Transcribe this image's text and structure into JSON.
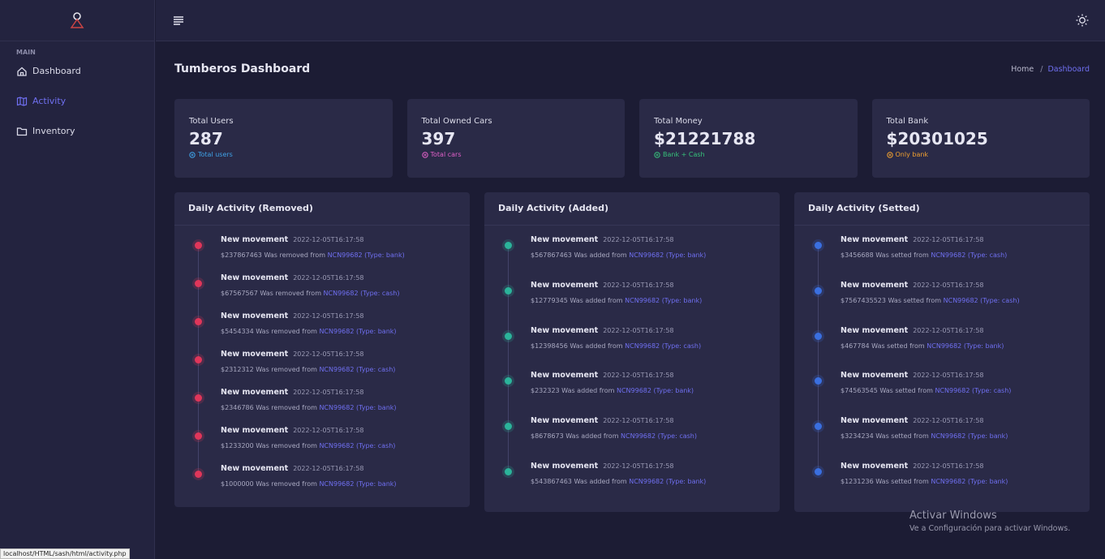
{
  "sidebar": {
    "section": "MAIN",
    "items": [
      "Dashboard",
      "Activity",
      "Inventory"
    ],
    "active": 1
  },
  "page": {
    "title": "Tumberos Dashboard",
    "breadcrumb": [
      "Home",
      "Dashboard"
    ],
    "separator": "/"
  },
  "stats": [
    {
      "label": "Total Users",
      "value": "287",
      "note": "Total users",
      "color": "#3fa3e8"
    },
    {
      "label": "Total Owned Cars",
      "value": "397",
      "note": "Total cars",
      "color": "#e060c8"
    },
    {
      "label": "Total Money",
      "value": "$21221788",
      "note": "Bank + Cash",
      "color": "#36c27a"
    },
    {
      "label": "Total Bank",
      "value": "$20301025",
      "note": "Only bank",
      "color": "#f0a030"
    }
  ],
  "panels": [
    {
      "title": "Daily Activity (Removed)",
      "color": "#e0365a",
      "items": [
        {
          "title": "New movement",
          "time": "2022-12-05T16:17:58",
          "text": "$237867463 Was removed from",
          "link": "NCN99682 (Type: bank)"
        },
        {
          "title": "New movement",
          "time": "2022-12-05T16:17:58",
          "text": "$67567567 Was removed from",
          "link": "NCN99682 (Type: cash)"
        },
        {
          "title": "New movement",
          "time": "2022-12-05T16:17:58",
          "text": "$5454334 Was removed from",
          "link": "NCN99682 (Type: bank)"
        },
        {
          "title": "New movement",
          "time": "2022-12-05T16:17:58",
          "text": "$2312312 Was removed from",
          "link": "NCN99682 (Type: cash)"
        },
        {
          "title": "New movement",
          "time": "2022-12-05T16:17:58",
          "text": "$2346786 Was removed from",
          "link": "NCN99682 (Type: bank)"
        },
        {
          "title": "New movement",
          "time": "2022-12-05T16:17:58",
          "text": "$1233200 Was removed from",
          "link": "NCN99682 (Type: cash)"
        },
        {
          "title": "New movement",
          "time": "2022-12-05T16:17:58",
          "text": "$1000000 Was removed from",
          "link": "NCN99682 (Type: bank)"
        }
      ]
    },
    {
      "title": "Daily Activity (Added)",
      "color": "#2bb39a",
      "items": [
        {
          "title": "New movement",
          "time": "2022-12-05T16:17:58",
          "text": "$567867463 Was added from",
          "link": "NCN99682 (Type: bank)"
        },
        {
          "title": "New movement",
          "time": "2022-12-05T16:17:58",
          "text": "$12779345 Was added from",
          "link": "NCN99682 (Type: bank)"
        },
        {
          "title": "New movement",
          "time": "2022-12-05T16:17:58",
          "text": "$12398456 Was added from",
          "link": "NCN99682 (Type: cash)"
        },
        {
          "title": "New movement",
          "time": "2022-12-05T16:17:58",
          "text": "$232323 Was added from",
          "link": "NCN99682 (Type: bank)"
        },
        {
          "title": "New movement",
          "time": "2022-12-05T16:17:58",
          "text": "$8678673 Was added from",
          "link": "NCN99682 (Type: cash)"
        },
        {
          "title": "New movement",
          "time": "2022-12-05T16:17:58",
          "text": "$543867463 Was added from",
          "link": "NCN99682 (Type: bank)"
        }
      ]
    },
    {
      "title": "Daily Activity (Setted)",
      "color": "#3a6fe0",
      "items": [
        {
          "title": "New movement",
          "time": "2022-12-05T16:17:58",
          "text": "$3456688 Was setted from",
          "link": "NCN99682 (Type: cash)"
        },
        {
          "title": "New movement",
          "time": "2022-12-05T16:17:58",
          "text": "$7567435523 Was setted from",
          "link": "NCN99682 (Type: cash)"
        },
        {
          "title": "New movement",
          "time": "2022-12-05T16:17:58",
          "text": "$467784 Was setted from",
          "link": "NCN99682 (Type: bank)"
        },
        {
          "title": "New movement",
          "time": "2022-12-05T16:17:58",
          "text": "$74563545 Was setted from",
          "link": "NCN99682 (Type: cash)"
        },
        {
          "title": "New movement",
          "time": "2022-12-05T16:17:58",
          "text": "$3234234 Was setted from",
          "link": "NCN99682 (Type: bank)"
        },
        {
          "title": "New movement",
          "time": "2022-12-05T16:17:58",
          "text": "$1231236 Was setted from",
          "link": "NCN99682 (Type: bank)"
        }
      ]
    }
  ],
  "watermark": {
    "title": "Activar Windows",
    "text": "Ve a Configuración para activar Windows."
  },
  "status_bar": "localhost/HTML/sash/html/activity.php"
}
